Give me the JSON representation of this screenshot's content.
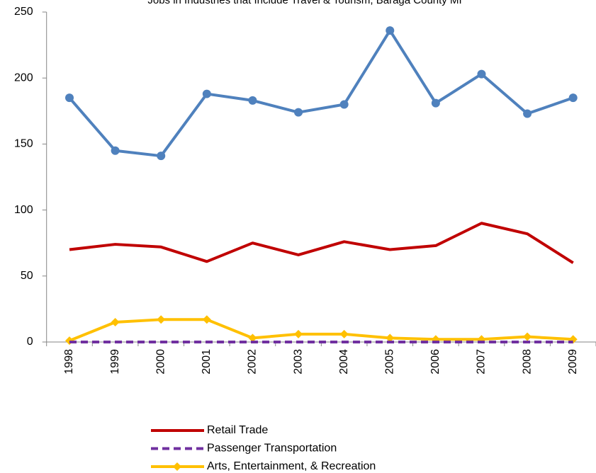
{
  "chart_data": {
    "type": "line",
    "title": "Jobs in Industries that Include Travel & Tourism, Baraga County MI",
    "categories": [
      "1998",
      "1999",
      "2000",
      "2001",
      "2002",
      "2003",
      "2004",
      "2005",
      "2006",
      "2007",
      "2008",
      "2009"
    ],
    "series": [
      {
        "color": "#4f81bd",
        "marker": "circle",
        "dashed": false,
        "values": [
          185,
          145,
          141,
          188,
          183,
          174,
          180,
          236,
          181,
          203,
          173,
          185
        ]
      },
      {
        "name": "Retail Trade",
        "color": "#c00000",
        "marker": "none",
        "dashed": false,
        "values": [
          70,
          74,
          72,
          61,
          75,
          66,
          76,
          70,
          73,
          90,
          82,
          60
        ]
      },
      {
        "name": "Arts, Entertainment, & Recreation",
        "color": "#ffc000",
        "marker": "diamond",
        "dashed": false,
        "values": [
          1,
          15,
          17,
          17,
          3,
          6,
          6,
          3,
          2,
          2,
          4,
          2
        ]
      },
      {
        "name": "Passenger Transportation",
        "color": "#7030a0",
        "marker": "none",
        "dashed": true,
        "values": [
          0,
          0,
          0,
          0,
          0,
          0,
          0,
          0,
          0,
          0,
          0,
          0
        ]
      }
    ],
    "legend_order": [
      1,
      3,
      2
    ],
    "ylim": [
      0,
      250
    ],
    "yticks": [
      0,
      50,
      100,
      150,
      200,
      250
    ],
    "grid": false
  }
}
